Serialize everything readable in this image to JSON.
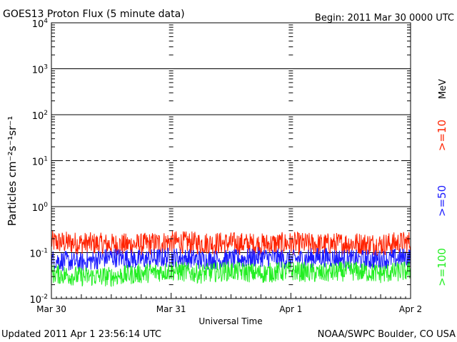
{
  "title": "GOES13 Proton Flux (5 minute data)",
  "begin": "Begin: 2011 Mar 30 0000 UTC",
  "updated": "Updated 2011 Apr  1 23:56:14 UTC",
  "source": "NOAA/SWPC Boulder, CO USA",
  "chart_data": {
    "type": "line",
    "xlabel": "Universal Time",
    "ylabel": "Particles cm⁻²s⁻¹sr⁻¹",
    "yscale": "log",
    "ylim": [
      0.01,
      10000
    ],
    "xlim": [
      0,
      3
    ],
    "x_ticks": [
      {
        "value": 0,
        "label": "Mar 30"
      },
      {
        "value": 1,
        "label": "Mar 31"
      },
      {
        "value": 2,
        "label": "Apr 1"
      },
      {
        "value": 3,
        "label": "Apr 2"
      }
    ],
    "y_ticks": [
      {
        "base": "10",
        "exp": "4",
        "value": 10000
      },
      {
        "base": "10",
        "exp": "3",
        "value": 1000
      },
      {
        "base": "10",
        "exp": "2",
        "value": 100
      },
      {
        "base": "10",
        "exp": "1",
        "value": 10
      },
      {
        "base": "10",
        "exp": "0",
        "value": 1
      },
      {
        "base": "10",
        "exp": "-1",
        "value": 0.1
      },
      {
        "base": "10",
        "exp": "-2",
        "value": 0.01
      }
    ],
    "thresholds": [
      {
        "value": 1000,
        "style": "solid"
      },
      {
        "value": 100,
        "style": "solid"
      },
      {
        "value": 10,
        "style": "dashed"
      },
      {
        "value": 1,
        "style": "solid"
      },
      {
        "value": 0.1,
        "style": "solid"
      }
    ],
    "unit_label": "MeV",
    "series": [
      {
        "name": ">=10",
        "color": "#ff2200",
        "x": [
          0,
          0.25,
          0.5,
          0.75,
          1,
          1.25,
          1.5,
          1.75,
          2,
          2.25,
          2.5,
          2.75,
          3
        ],
        "y": [
          0.17,
          0.16,
          0.15,
          0.15,
          0.17,
          0.16,
          0.16,
          0.15,
          0.16,
          0.15,
          0.16,
          0.15,
          0.17
        ]
      },
      {
        "name": ">=50",
        "color": "#1a1aff",
        "x": [
          0,
          0.25,
          0.5,
          0.75,
          1,
          1.25,
          1.5,
          1.75,
          2,
          2.25,
          2.5,
          2.75,
          3
        ],
        "y": [
          0.07,
          0.06,
          0.08,
          0.07,
          0.08,
          0.07,
          0.07,
          0.08,
          0.07,
          0.08,
          0.07,
          0.07,
          0.08
        ]
      },
      {
        "name": ">=100",
        "color": "#22ee22",
        "x": [
          0,
          0.25,
          0.5,
          0.75,
          1,
          1.25,
          1.5,
          1.75,
          2,
          2.25,
          2.5,
          2.75,
          3
        ],
        "y": [
          0.035,
          0.03,
          0.03,
          0.035,
          0.04,
          0.035,
          0.04,
          0.035,
          0.04,
          0.035,
          0.04,
          0.035,
          0.04
        ]
      }
    ]
  }
}
